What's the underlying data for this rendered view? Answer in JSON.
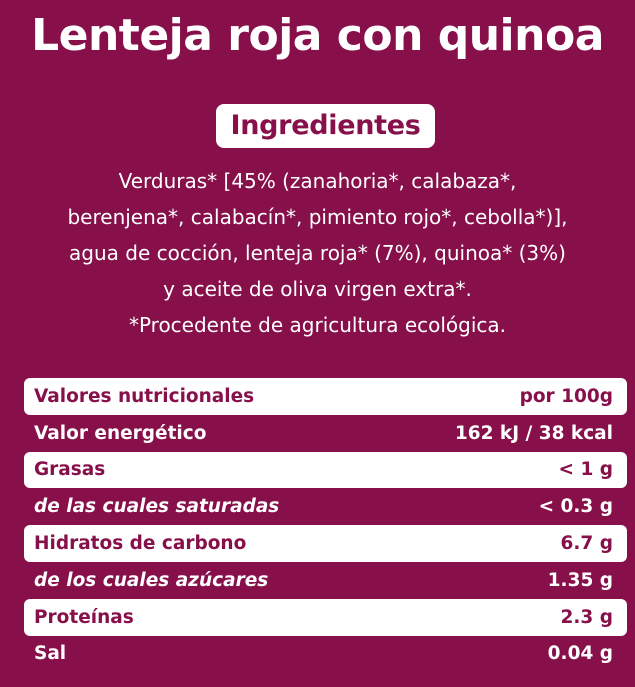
{
  "title": "Lenteja roja con quinoa",
  "ingredients": {
    "header": "Ingredientes",
    "lines": [
      "Verduras* [45% (zanahoria*, calabaza*,",
      "berenjena*, calabacín*, pimiento rojo*, cebolla*)],",
      "agua de cocción, lenteja roja* (7%), quinoa* (3%)",
      "y aceite de oliva virgen extra*.",
      "*Procedente de agricultura ecológica."
    ]
  },
  "nutrition": {
    "rows": [
      {
        "label": "Valores nutricionales",
        "value": "por 100g"
      },
      {
        "label": "Valor energético",
        "value": "162 kJ / 38 kcal"
      },
      {
        "label": "Grasas",
        "value": "< 1 g"
      },
      {
        "label": "de las cuales saturadas",
        "value": "< 0.3 g"
      },
      {
        "label": "Hidratos de carbono",
        "value": "6.7 g"
      },
      {
        "label": "de los cuales azúcares",
        "value": "1.35 g"
      },
      {
        "label": "Proteínas",
        "value": "2.3 g"
      },
      {
        "label": "Sal",
        "value": "0.04 g"
      }
    ]
  },
  "colors": {
    "background": "#870f4a",
    "foreground": "#ffffff"
  }
}
